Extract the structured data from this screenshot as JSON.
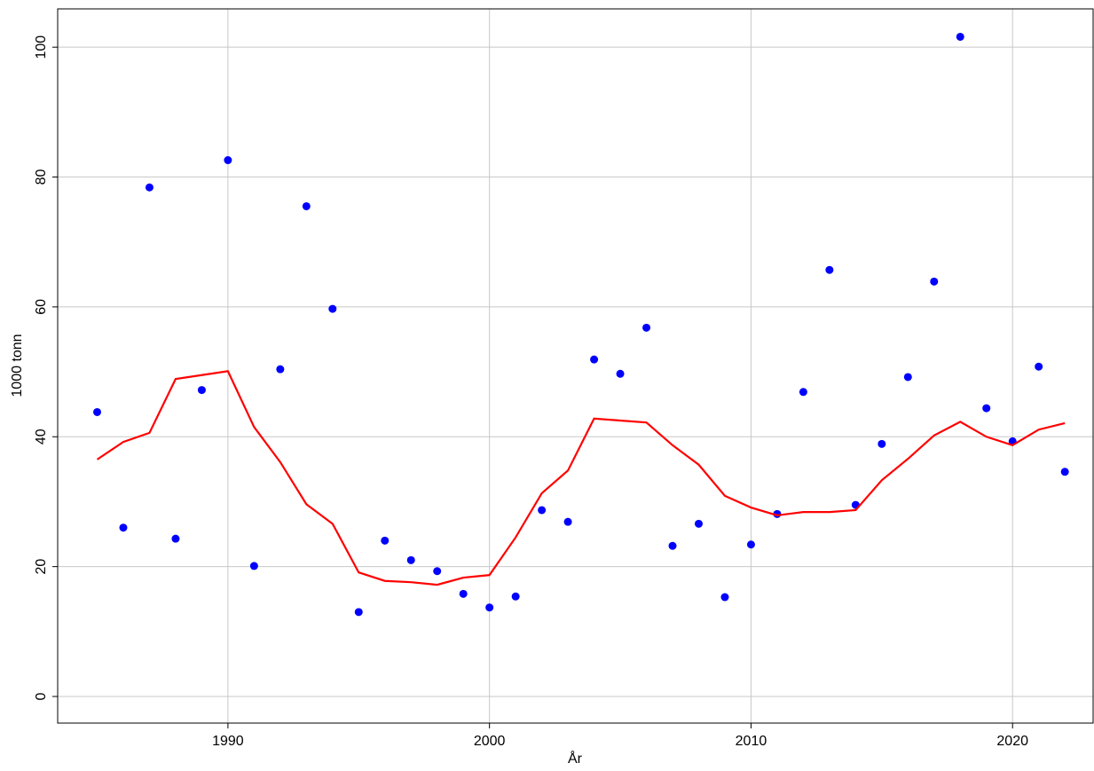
{
  "chart_data": {
    "type": "scatter",
    "x_label": "År",
    "y_label": "1000 tonn",
    "x": [
      1985,
      1986,
      1987,
      1988,
      1989,
      1990,
      1991,
      1992,
      1993,
      1994,
      1995,
      1996,
      1997,
      1998,
      1999,
      2000,
      2001,
      2002,
      2003,
      2004,
      2005,
      2006,
      2007,
      2008,
      2009,
      2010,
      2011,
      2012,
      2013,
      2014,
      2015,
      2016,
      2017,
      2018,
      2019,
      2020,
      2021,
      2022
    ],
    "series": [
      {
        "mode": "markers",
        "color": "#0000ff",
        "values": [
          43.8,
          26.0,
          78.4,
          24.3,
          47.2,
          82.6,
          20.1,
          50.4,
          75.5,
          59.7,
          13.0,
          24.0,
          21.0,
          19.3,
          15.8,
          13.7,
          15.4,
          28.7,
          26.9,
          51.9,
          49.7,
          56.8,
          23.2,
          26.6,
          15.3,
          23.4,
          28.1,
          46.9,
          65.7,
          29.5,
          38.9,
          49.2,
          63.9,
          101.6,
          44.4,
          39.3,
          50.8,
          34.6
        ]
      },
      {
        "mode": "lines",
        "color": "#ff0000",
        "values": [
          36.5,
          39.2,
          40.6,
          48.9,
          49.5,
          50.1,
          41.5,
          36.1,
          29.6,
          26.6,
          19.1,
          17.8,
          17.6,
          17.2,
          18.3,
          18.7,
          24.5,
          31.3,
          34.8,
          42.8,
          42.5,
          42.2,
          38.7,
          35.7,
          30.9,
          29.1,
          27.9,
          28.4,
          28.4,
          28.7,
          33.3,
          36.6,
          40.2,
          42.3,
          40.0,
          38.7,
          41.1,
          42.1
        ]
      }
    ],
    "xlim": [
      1983.49,
      2023.08
    ],
    "xticks": [
      1990,
      2000,
      2010,
      2020
    ],
    "ylim": [
      -4.1,
      105.9
    ],
    "yticks": [
      0,
      20,
      40,
      60,
      80,
      100
    ],
    "grid": true
  }
}
